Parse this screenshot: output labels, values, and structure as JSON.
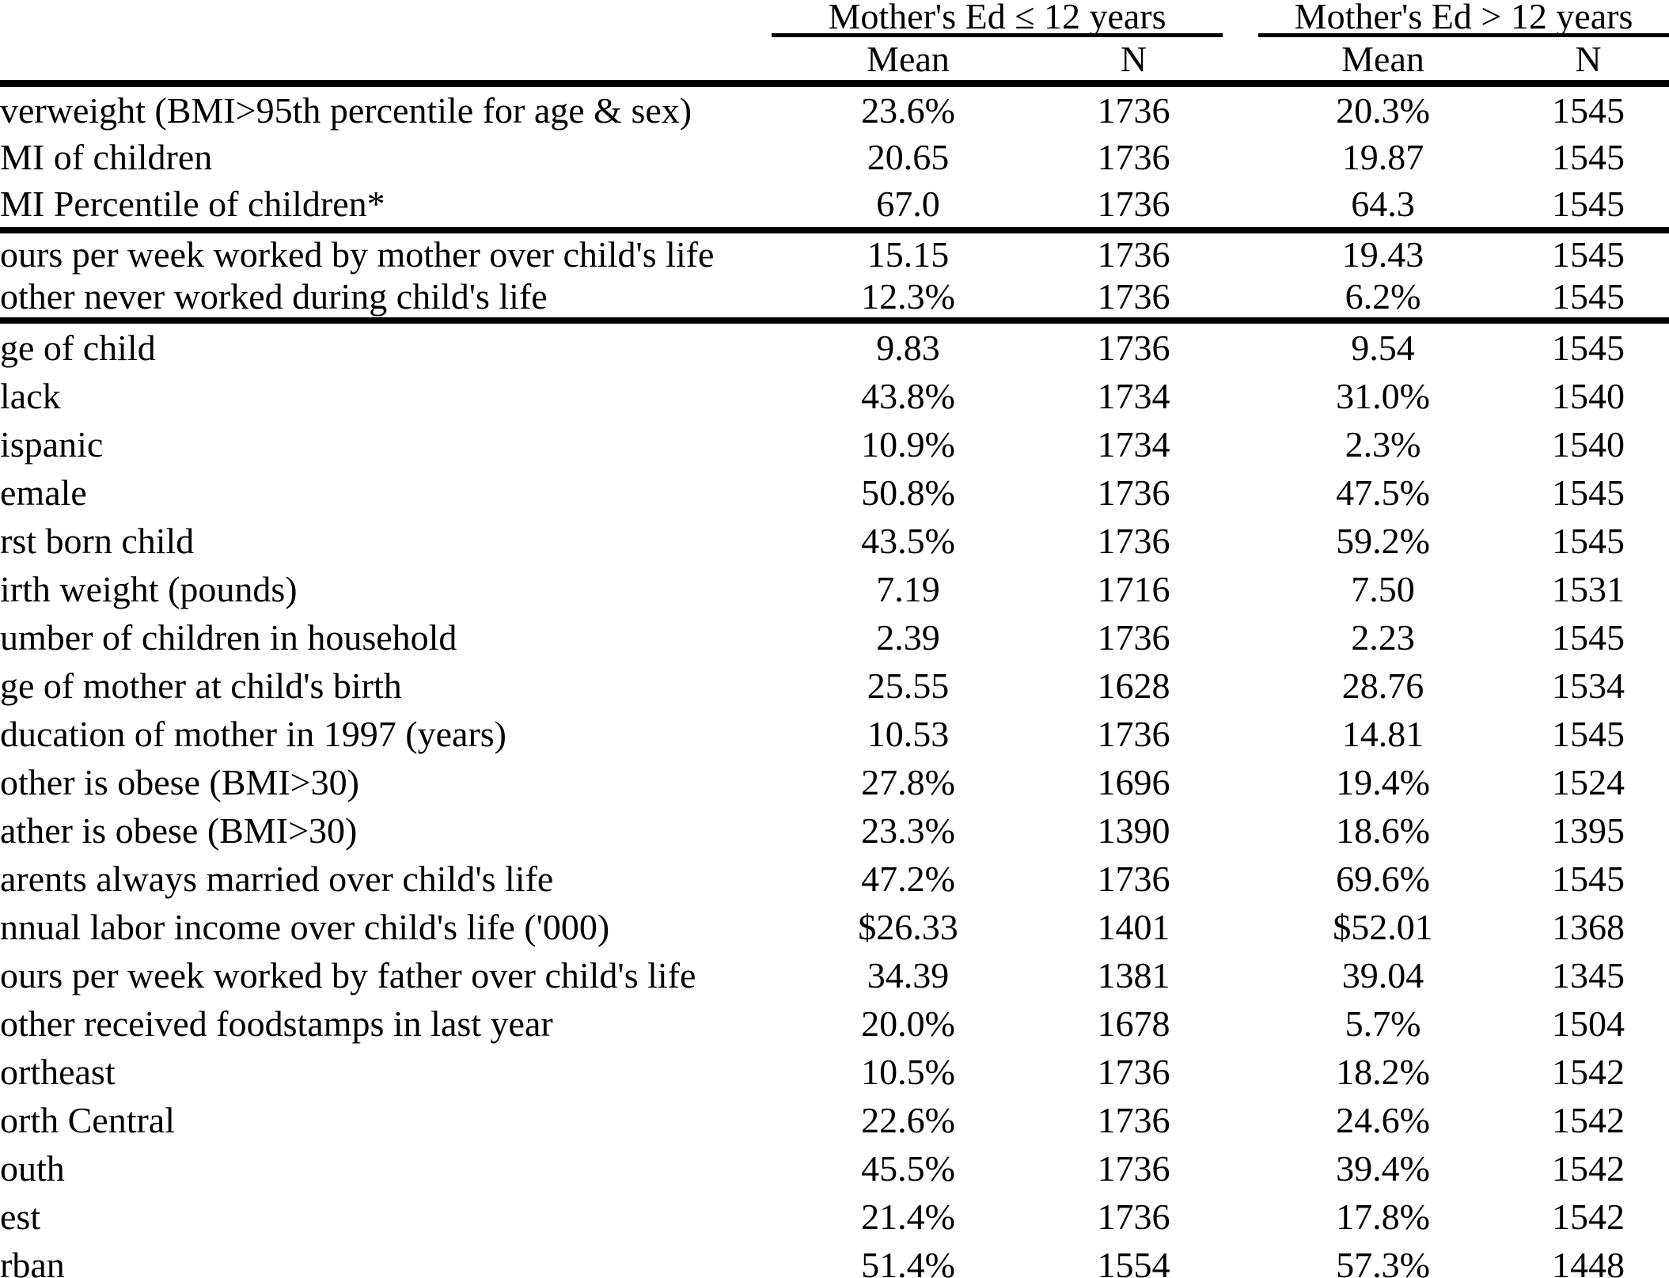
{
  "table": {
    "groups": [
      {
        "label": "Mother's Ed ≤ 12 years",
        "sub": [
          "Mean",
          "N"
        ]
      },
      {
        "label": "Mother's Ed > 12 years",
        "sub": [
          "Mean",
          "N"
        ]
      }
    ],
    "rows": [
      {
        "label": "verweight (BMI>95th percentile for age & sex)",
        "cells": [
          "23.6%",
          "1736",
          "20.3%",
          "1545"
        ],
        "section": 1
      },
      {
        "label": "MI of children",
        "cells": [
          "20.65",
          "1736",
          "19.87",
          "1545"
        ],
        "section": 1
      },
      {
        "label": "MI Percentile of children*",
        "cells": [
          "67.0",
          "1736",
          "64.3",
          "1545"
        ],
        "section": 1,
        "rule_after": true
      },
      {
        "label": "ours per week worked by mother over child's life",
        "cells": [
          "15.15",
          "1736",
          "19.43",
          "1545"
        ],
        "section": 2
      },
      {
        "label": "other never worked during child's life",
        "cells": [
          "12.3%",
          "1736",
          "6.2%",
          "1545"
        ],
        "section": 2,
        "rule_after": true
      },
      {
        "label": "ge of child",
        "cells": [
          "9.83",
          "1736",
          "9.54",
          "1545"
        ],
        "section": 3
      },
      {
        "label": "lack",
        "cells": [
          "43.8%",
          "1734",
          "31.0%",
          "1540"
        ],
        "section": 3
      },
      {
        "label": "ispanic",
        "cells": [
          "10.9%",
          "1734",
          "2.3%",
          "1540"
        ],
        "section": 3
      },
      {
        "label": "emale",
        "cells": [
          "50.8%",
          "1736",
          "47.5%",
          "1545"
        ],
        "section": 3
      },
      {
        "label": "rst born child",
        "cells": [
          "43.5%",
          "1736",
          "59.2%",
          "1545"
        ],
        "section": 3
      },
      {
        "label": "irth weight (pounds)",
        "cells": [
          "7.19",
          "1716",
          "7.50",
          "1531"
        ],
        "section": 3
      },
      {
        "label": "umber of children in household",
        "cells": [
          "2.39",
          "1736",
          "2.23",
          "1545"
        ],
        "section": 3
      },
      {
        "label": "ge of mother at child's birth",
        "cells": [
          "25.55",
          "1628",
          "28.76",
          "1534"
        ],
        "section": 3
      },
      {
        "label": "ducation of mother in 1997 (years)",
        "cells": [
          "10.53",
          "1736",
          "14.81",
          "1545"
        ],
        "section": 3
      },
      {
        "label": "other is obese (BMI>30)",
        "cells": [
          "27.8%",
          "1696",
          "19.4%",
          "1524"
        ],
        "section": 3
      },
      {
        "label": "ather is obese (BMI>30)",
        "cells": [
          "23.3%",
          "1390",
          "18.6%",
          "1395"
        ],
        "section": 3
      },
      {
        "label": "arents always married over child's life",
        "cells": [
          "47.2%",
          "1736",
          "69.6%",
          "1545"
        ],
        "section": 3
      },
      {
        "label": "nnual labor income over child's life ('000)",
        "cells": [
          "$26.33",
          "1401",
          "$52.01",
          "1368"
        ],
        "section": 3
      },
      {
        "label": "ours per week worked by father over child's life",
        "cells": [
          "34.39",
          "1381",
          "39.04",
          "1345"
        ],
        "section": 3
      },
      {
        "label": "other received foodstamps in last year",
        "cells": [
          "20.0%",
          "1678",
          "5.7%",
          "1504"
        ],
        "section": 3
      },
      {
        "label": "ortheast",
        "cells": [
          "10.5%",
          "1736",
          "18.2%",
          "1542"
        ],
        "section": 3
      },
      {
        "label": "orth Central",
        "cells": [
          "22.6%",
          "1736",
          "24.6%",
          "1542"
        ],
        "section": 3
      },
      {
        "label": "outh",
        "cells": [
          "45.5%",
          "1736",
          "39.4%",
          "1542"
        ],
        "section": 3
      },
      {
        "label": "est",
        "cells": [
          "21.4%",
          "1736",
          "17.8%",
          "1542"
        ],
        "section": 3
      },
      {
        "label": "rban",
        "cells": [
          "51.4%",
          "1554",
          "57.3%",
          "1448"
        ],
        "section": 3
      }
    ]
  }
}
